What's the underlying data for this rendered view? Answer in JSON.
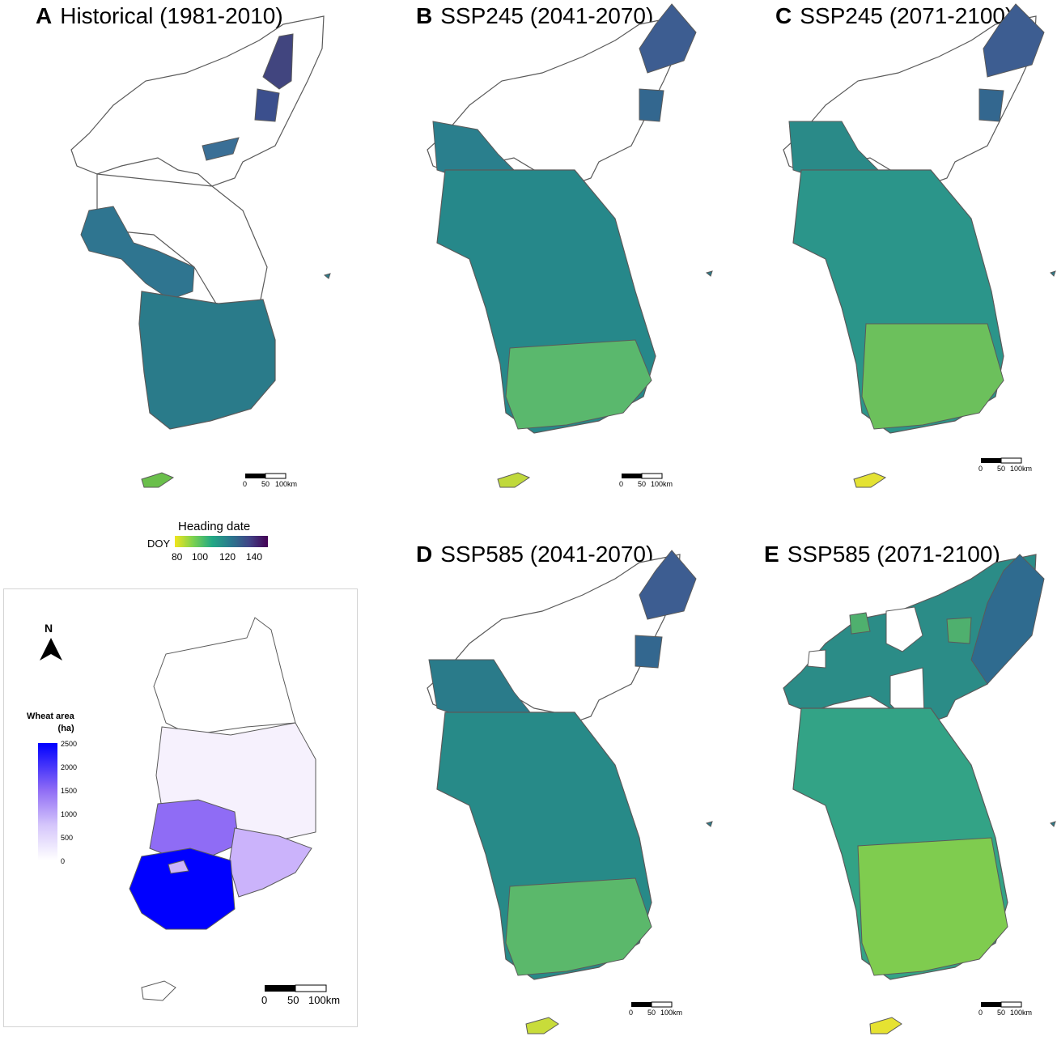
{
  "panels": [
    {
      "letter": "A",
      "title": "Historical (1981-2010)"
    },
    {
      "letter": "B",
      "title": "SSP245 (2041-2070)"
    },
    {
      "letter": "C",
      "title": "SSP245 (2071-2100)"
    },
    {
      "letter": "D",
      "title": "SSP585 (2041-2070)"
    },
    {
      "letter": "E",
      "title": "SSP585 (2071-2100)"
    }
  ],
  "scalebar": {
    "labels": [
      "0",
      "50",
      "100km"
    ]
  },
  "heading_legend": {
    "title": "Heading date",
    "unit": "DOY",
    "ticks": [
      "80",
      "100",
      "120",
      "140"
    ],
    "colors": [
      "#f1e51d",
      "#7ad151",
      "#22a884",
      "#2a788e",
      "#414487",
      "#440154"
    ]
  },
  "inset": {
    "north": "N",
    "legend_title_1": "Wheat area",
    "legend_title_2": "(ha)",
    "ticks": [
      "2500",
      "2000",
      "1500",
      "1000",
      "500",
      "0"
    ],
    "colors": {
      "max": "#0000ff",
      "mid": "#8f6cf5",
      "low": "#cbb3fb",
      "min": "#f6f1fd",
      "none": "#ffffff"
    },
    "scale_labels": [
      "0",
      "50",
      "100km"
    ]
  },
  "map_colors": {
    "none": "#ffffff",
    "north_hi": "#3f4e8e",
    "coast_mid": "#2d6e8c",
    "main": "#2a8a85",
    "green": "#4fb96a",
    "lime": "#8fd44a",
    "yellow": "#d8e23a",
    "boundary": "#5a5a5a"
  }
}
